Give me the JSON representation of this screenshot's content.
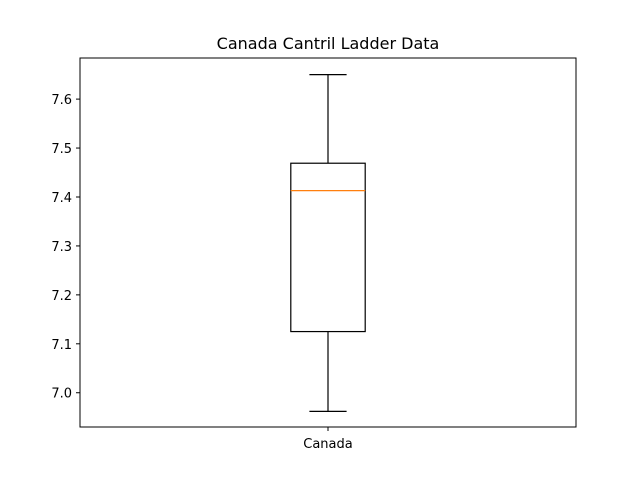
{
  "chart_data": {
    "type": "box",
    "title": "Canada Cantril Ladder Data",
    "xlabel": "",
    "ylabel": "",
    "categories": [
      "Canada"
    ],
    "boxes": [
      {
        "category": "Canada",
        "whisker_low": 6.962,
        "q1": 7.125,
        "median": 7.413,
        "q3": 7.469,
        "whisker_high": 7.65
      }
    ],
    "ylim": [
      6.93,
      7.684
    ],
    "yticks": [
      7.0,
      7.1,
      7.2,
      7.3,
      7.4,
      7.5,
      7.6
    ],
    "ytick_labels": [
      "7.0",
      "7.1",
      "7.2",
      "7.3",
      "7.4",
      "7.5",
      "7.6"
    ],
    "grid": false,
    "colors": {
      "box": "#000000",
      "median": "#ff7f0e",
      "whisker": "#000000",
      "axes": "#000000"
    }
  }
}
